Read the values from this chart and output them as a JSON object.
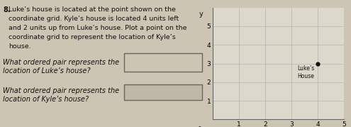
{
  "bg_color": "#cdc5b4",
  "grid_bg": "#ddd8cc",
  "title_number": "8.",
  "problem_text": "Luke’s house is located at the point shown on the\ncoordinate grid. Kyle’s house is located 4 units left\nand 2 units up from Luke’s house. Plot a point on the\ncoordinate grid to represent the location of Kyle’s\nhouse.",
  "question1_line1": "What ordered pair represents the",
  "question1_line2": "location of Luke’s house?",
  "question2_line1": "What ordered pair represents the",
  "question2_line2": "location of Kyle’s house?",
  "luke_x": 4,
  "luke_y": 3,
  "xlim": [
    0,
    5
  ],
  "ylim": [
    0,
    6
  ],
  "xticks": [
    1,
    2,
    3,
    4,
    5
  ],
  "yticks": [
    1,
    2,
    3,
    4,
    5
  ],
  "grid_color": "#aaaaaa",
  "point_color": "#111111",
  "text_color": "#111111",
  "luke_label_line1": "Luke’s",
  "luke_label_line2": "House"
}
